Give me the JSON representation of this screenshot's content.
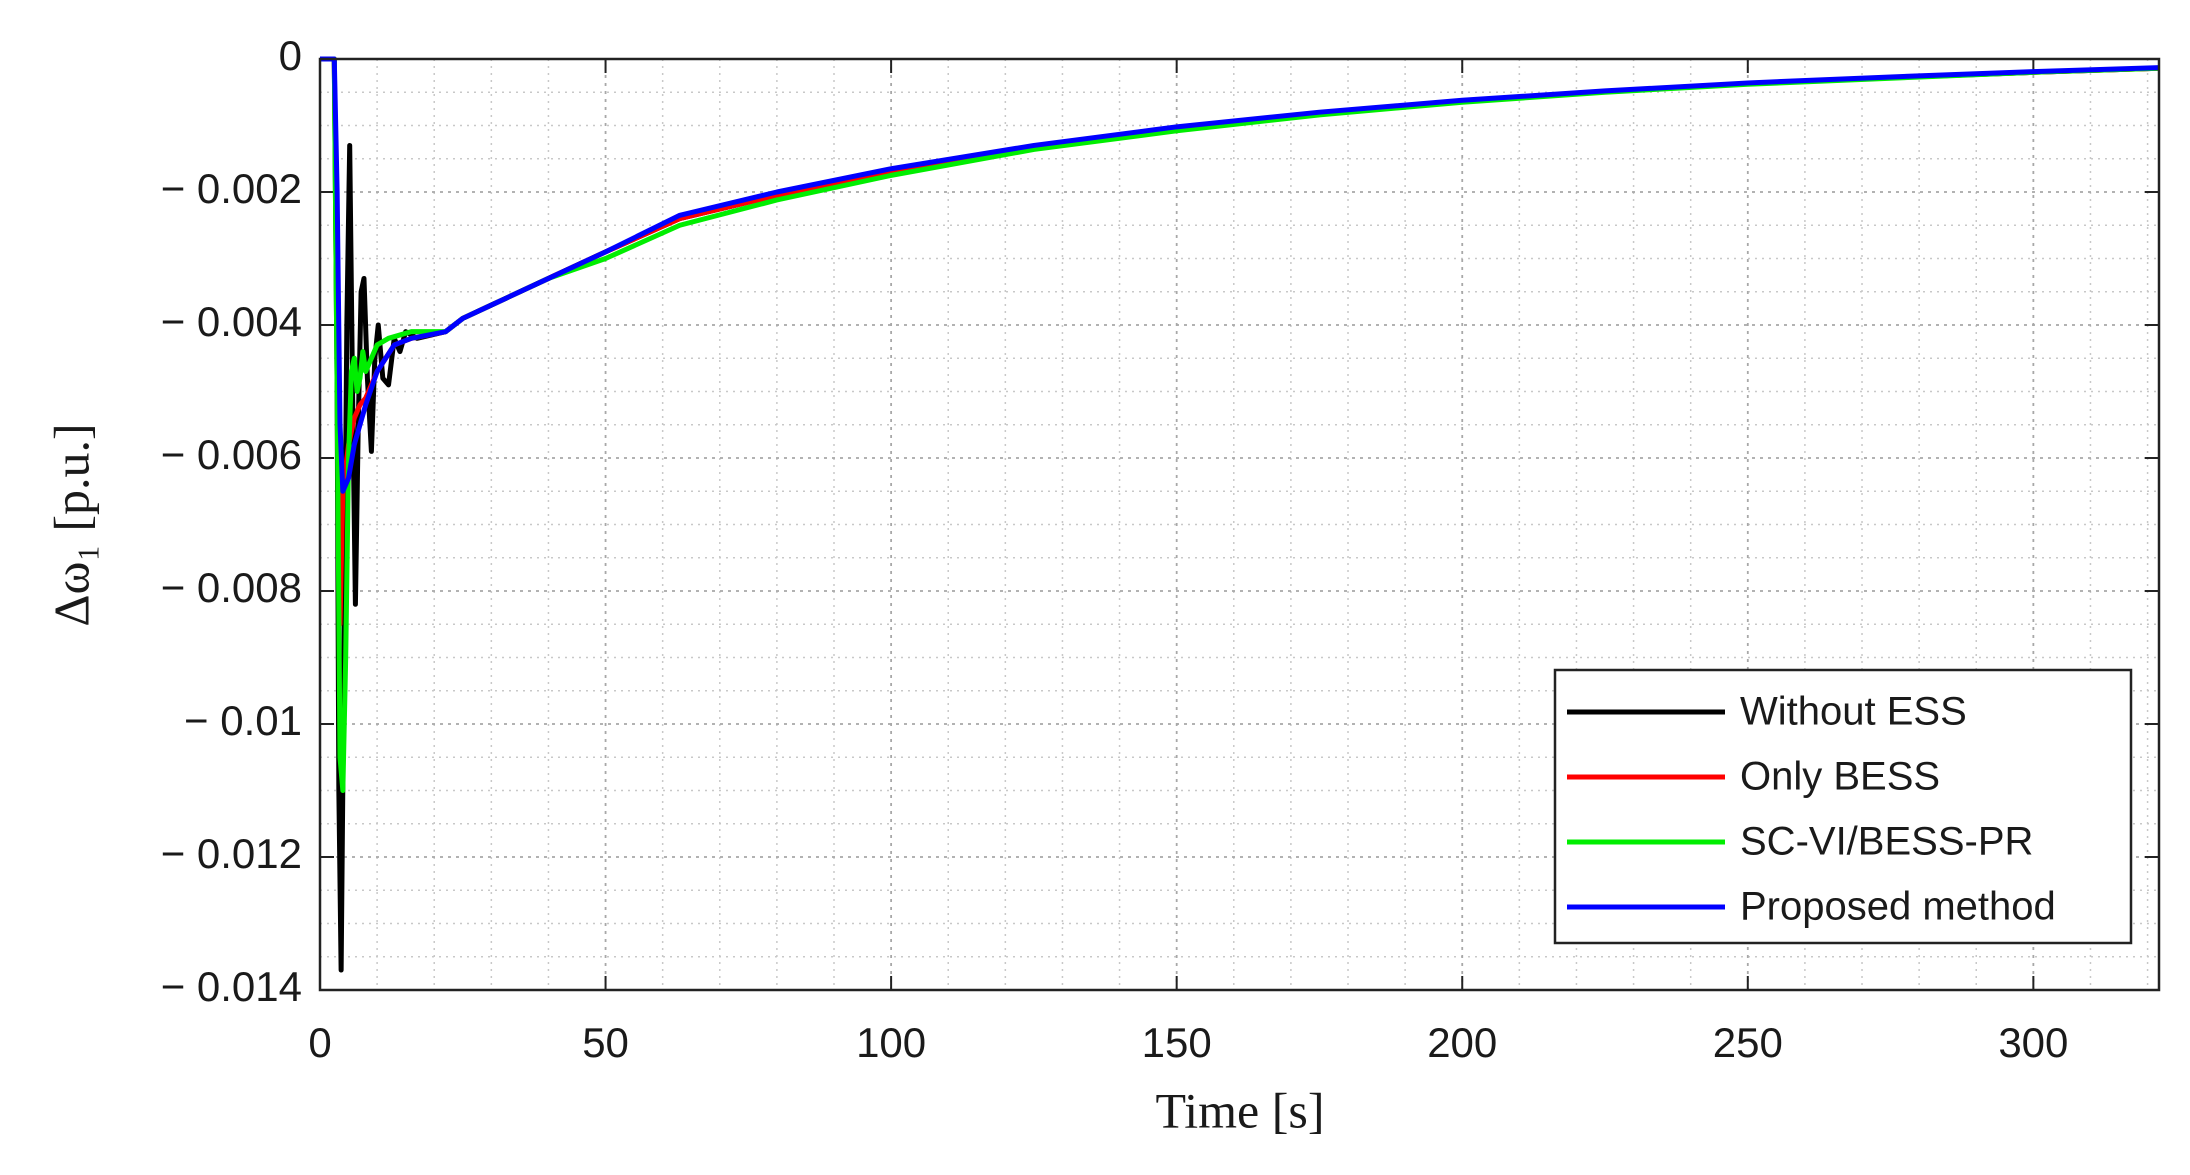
{
  "chart_data": {
    "type": "line",
    "xlabel": "Time [s]",
    "ylabel": "Δω₁ [p.u.]",
    "xlim": [
      0,
      322
    ],
    "xticks": [
      0,
      50,
      100,
      150,
      200,
      250,
      300
    ],
    "ylim": [
      -0.014,
      0
    ],
    "yticks": [
      {
        "value": -0.014,
        "label": "− 0.014"
      },
      {
        "value": -0.012,
        "label": "− 0.012"
      },
      {
        "value": -0.01,
        "label": "− 0.01"
      },
      {
        "value": -0.008,
        "label": "− 0.008"
      },
      {
        "value": -0.006,
        "label": "− 0.006"
      },
      {
        "value": -0.004,
        "label": "− 0.004"
      },
      {
        "value": -0.002,
        "label": "− 0.002"
      },
      0
    ],
    "grid": true,
    "legend": "lower right",
    "series": [
      {
        "name": "Without ESS",
        "color": "#000000",
        "x": [
          0,
          2.5,
          3,
          3.3,
          3.7,
          4.2,
          4.7,
          5.2,
          5.7,
          6.2,
          6.7,
          7.2,
          7.7,
          8.3,
          9,
          9.6,
          10.2,
          11,
          12,
          13,
          14,
          15,
          17,
          22,
          25,
          30,
          40,
          50,
          63,
          80,
          100,
          125,
          150,
          175,
          200,
          225,
          250,
          275,
          300,
          322
        ],
        "values": [
          0,
          0,
          -0.005,
          -0.011,
          -0.0137,
          -0.009,
          -0.004,
          -0.0013,
          -0.005,
          -0.0082,
          -0.0055,
          -0.0035,
          -0.0033,
          -0.0048,
          -0.0059,
          -0.0045,
          -0.004,
          -0.0048,
          -0.0049,
          -0.0042,
          -0.0044,
          -0.0041,
          -0.0042,
          -0.0041,
          -0.0039,
          -0.0037,
          -0.0033,
          -0.0029,
          -0.0024,
          -0.00205,
          -0.0017,
          -0.00132,
          -0.00104,
          -0.00081,
          -0.00063,
          -0.00049,
          -0.00037,
          -0.00028,
          -0.0002,
          -0.00014
        ]
      },
      {
        "name": "Only BESS",
        "color": "#ff0000",
        "x": [
          0,
          2.5,
          3,
          3.5,
          4,
          5,
          6,
          7,
          8,
          10,
          13,
          16,
          22,
          25,
          30,
          40,
          50,
          63,
          80,
          100,
          125,
          150,
          175,
          200,
          225,
          250,
          275,
          300,
          322
        ],
        "values": [
          0,
          0,
          -0.004,
          -0.0085,
          -0.0065,
          -0.0058,
          -0.0054,
          -0.0052,
          -0.0051,
          -0.0047,
          -0.0043,
          -0.0042,
          -0.0041,
          -0.0039,
          -0.0037,
          -0.0033,
          -0.0029,
          -0.0024,
          -0.00205,
          -0.0017,
          -0.00132,
          -0.00104,
          -0.00081,
          -0.00063,
          -0.00049,
          -0.00037,
          -0.00028,
          -0.0002,
          -0.00014
        ]
      },
      {
        "name": "SC-VI/BESS-PR",
        "color": "#00ee00",
        "x": [
          0,
          2.5,
          3,
          3.5,
          4,
          4.5,
          5,
          5.5,
          6,
          6.5,
          7,
          7.5,
          8,
          9,
          10,
          12,
          16,
          22,
          25,
          30,
          40,
          50,
          63,
          80,
          100,
          125,
          150,
          175,
          200,
          225,
          250,
          275,
          300,
          322
        ],
        "values": [
          0,
          0,
          -0.005,
          -0.0105,
          -0.011,
          -0.009,
          -0.006,
          -0.0047,
          -0.0045,
          -0.005,
          -0.0048,
          -0.0044,
          -0.0047,
          -0.0045,
          -0.0043,
          -0.0042,
          -0.0041,
          -0.0041,
          -0.0039,
          -0.0037,
          -0.0033,
          -0.003,
          -0.0025,
          -0.00212,
          -0.00175,
          -0.00136,
          -0.00108,
          -0.00084,
          -0.00065,
          -0.0005,
          -0.00038,
          -0.00029,
          -0.0002,
          -0.00014
        ]
      },
      {
        "name": "Proposed method",
        "color": "#0000ff",
        "x": [
          0,
          2.5,
          3,
          3.5,
          4,
          5,
          6,
          8,
          10,
          13,
          16,
          22,
          25,
          30,
          40,
          50,
          63,
          80,
          100,
          125,
          150,
          175,
          200,
          225,
          250,
          275,
          300,
          322
        ],
        "values": [
          0,
          0,
          -0.002,
          -0.0055,
          -0.0065,
          -0.0063,
          -0.0058,
          -0.0052,
          -0.0047,
          -0.0043,
          -0.0042,
          -0.0041,
          -0.0039,
          -0.0037,
          -0.0033,
          -0.0029,
          -0.00235,
          -0.002,
          -0.00165,
          -0.0013,
          -0.00102,
          -0.0008,
          -0.00062,
          -0.00048,
          -0.00036,
          -0.00027,
          -0.00019,
          -0.00013
        ]
      }
    ]
  }
}
